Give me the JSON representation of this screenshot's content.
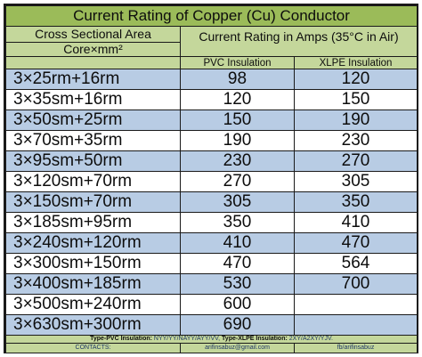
{
  "title": "Current Rating of Copper (Cu) Conductor",
  "headers": {
    "cross_section": "Cross Sectional Area",
    "core_unit": "Core×mm²",
    "current_rating": "Current Rating in Amps (35°C in Air)",
    "pvc": "PVC Insulation",
    "xlpe": "XLPE Insulation"
  },
  "rows": [
    {
      "size": "3×25rm+16rm",
      "pvc": "98",
      "xlpe": "120"
    },
    {
      "size": "3×35sm+16rm",
      "pvc": "120",
      "xlpe": "150"
    },
    {
      "size": "3×50sm+25rm",
      "pvc": "150",
      "xlpe": "190"
    },
    {
      "size": "3×70sm+35rm",
      "pvc": "190",
      "xlpe": "230"
    },
    {
      "size": "3×95sm+50rm",
      "pvc": "230",
      "xlpe": "270"
    },
    {
      "size": "3×120sm+70rm",
      "pvc": "270",
      "xlpe": "305"
    },
    {
      "size": "3×150sm+70rm",
      "pvc": "305",
      "xlpe": "350"
    },
    {
      "size": "3×185sm+95rm",
      "pvc": "350",
      "xlpe": "410"
    },
    {
      "size": "3×240sm+120rm",
      "pvc": "410",
      "xlpe": "470"
    },
    {
      "size": "3×300sm+150rm",
      "pvc": "470",
      "xlpe": "564"
    },
    {
      "size": "3×400sm+185rm",
      "pvc": "530",
      "xlpe": "700"
    },
    {
      "size": "3×500sm+240rm",
      "pvc": "600",
      "xlpe": ""
    },
    {
      "size": "3×630sm+300rm",
      "pvc": "690",
      "xlpe": ""
    }
  ],
  "footer": {
    "pvc_label": "Type-PVC Insulation:",
    "pvc_types": "NYY/YY/NAYY/AYY/VV,",
    "xlpe_label": "Type-XLPE Insulation:",
    "xlpe_types": "2XY/A2XY/YJV."
  },
  "contacts": {
    "label": "CONTACTS:",
    "email": "arifinsabuz@gmail.com",
    "facebook": "fb/arifinsabuz"
  },
  "colors": {
    "title_bg": "#9bbb59",
    "header_bg": "#c4d79b",
    "row_blue": "#b8cce4",
    "row_white": "#ffffff"
  }
}
